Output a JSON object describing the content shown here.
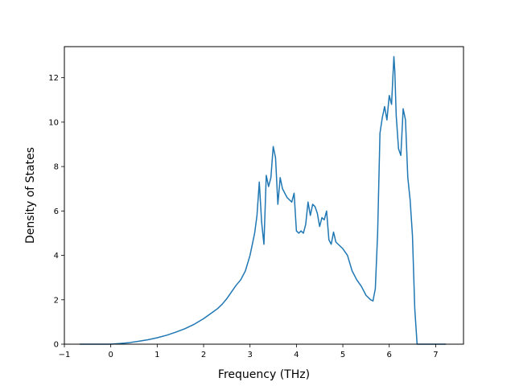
{
  "chart_data": {
    "type": "line",
    "title": "",
    "xlabel": "Frequency (THz)",
    "ylabel": "Density of States",
    "xlim": [
      -1.0,
      7.6
    ],
    "ylim": [
      0,
      13.4
    ],
    "xticks": [
      -1,
      0,
      1,
      2,
      3,
      4,
      5,
      6,
      7
    ],
    "xtick_labels": [
      "−1",
      "0",
      "1",
      "2",
      "3",
      "4",
      "5",
      "6",
      "7"
    ],
    "yticks": [
      0,
      2,
      4,
      6,
      8,
      10,
      12
    ],
    "ytick_labels": [
      "0",
      "2",
      "4",
      "6",
      "8",
      "10",
      "12"
    ],
    "grid": false,
    "line_color": "#1f77b4",
    "series": [
      {
        "x": [
          -0.67,
          0.0,
          0.2,
          0.4,
          0.6,
          0.8,
          1.0,
          1.2,
          1.4,
          1.6,
          1.8,
          2.0,
          2.1,
          2.2,
          2.3,
          2.4,
          2.5,
          2.6,
          2.7,
          2.8,
          2.9,
          3.0,
          3.1,
          3.15,
          3.2,
          3.25,
          3.3,
          3.35,
          3.4,
          3.45,
          3.5,
          3.55,
          3.6,
          3.65,
          3.7,
          3.8,
          3.9,
          3.95,
          4.0,
          4.05,
          4.1,
          4.15,
          4.2,
          4.25,
          4.3,
          4.35,
          4.4,
          4.45,
          4.5,
          4.55,
          4.6,
          4.65,
          4.7,
          4.75,
          4.8,
          4.85,
          4.9,
          5.0,
          5.1,
          5.2,
          5.3,
          5.4,
          5.5,
          5.6,
          5.65,
          5.7,
          5.75,
          5.8,
          5.85,
          5.9,
          5.95,
          6.0,
          6.05,
          6.1,
          6.12,
          6.15,
          6.2,
          6.25,
          6.3,
          6.35,
          6.4,
          6.45,
          6.5,
          6.55,
          6.6,
          7.22
        ],
        "y": [
          0.0,
          0.0,
          0.03,
          0.07,
          0.13,
          0.2,
          0.29,
          0.4,
          0.54,
          0.7,
          0.9,
          1.15,
          1.3,
          1.45,
          1.6,
          1.8,
          2.05,
          2.35,
          2.65,
          2.9,
          3.3,
          4.0,
          5.0,
          5.8,
          7.3,
          5.5,
          4.5,
          7.6,
          7.1,
          7.5,
          8.9,
          8.4,
          6.3,
          7.5,
          7.0,
          6.6,
          6.4,
          6.8,
          5.1,
          5.0,
          5.1,
          5.0,
          5.4,
          6.4,
          5.8,
          6.3,
          6.2,
          5.9,
          5.3,
          5.7,
          5.6,
          6.0,
          4.7,
          4.5,
          5.05,
          4.6,
          4.5,
          4.3,
          4.0,
          3.3,
          2.9,
          2.6,
          2.2,
          2.0,
          1.95,
          2.5,
          5.0,
          9.5,
          10.2,
          10.7,
          10.1,
          11.2,
          10.8,
          12.95,
          12.3,
          10.3,
          8.8,
          8.5,
          10.6,
          10.1,
          7.5,
          6.5,
          4.9,
          1.6,
          0.0,
          0.0
        ]
      }
    ]
  }
}
